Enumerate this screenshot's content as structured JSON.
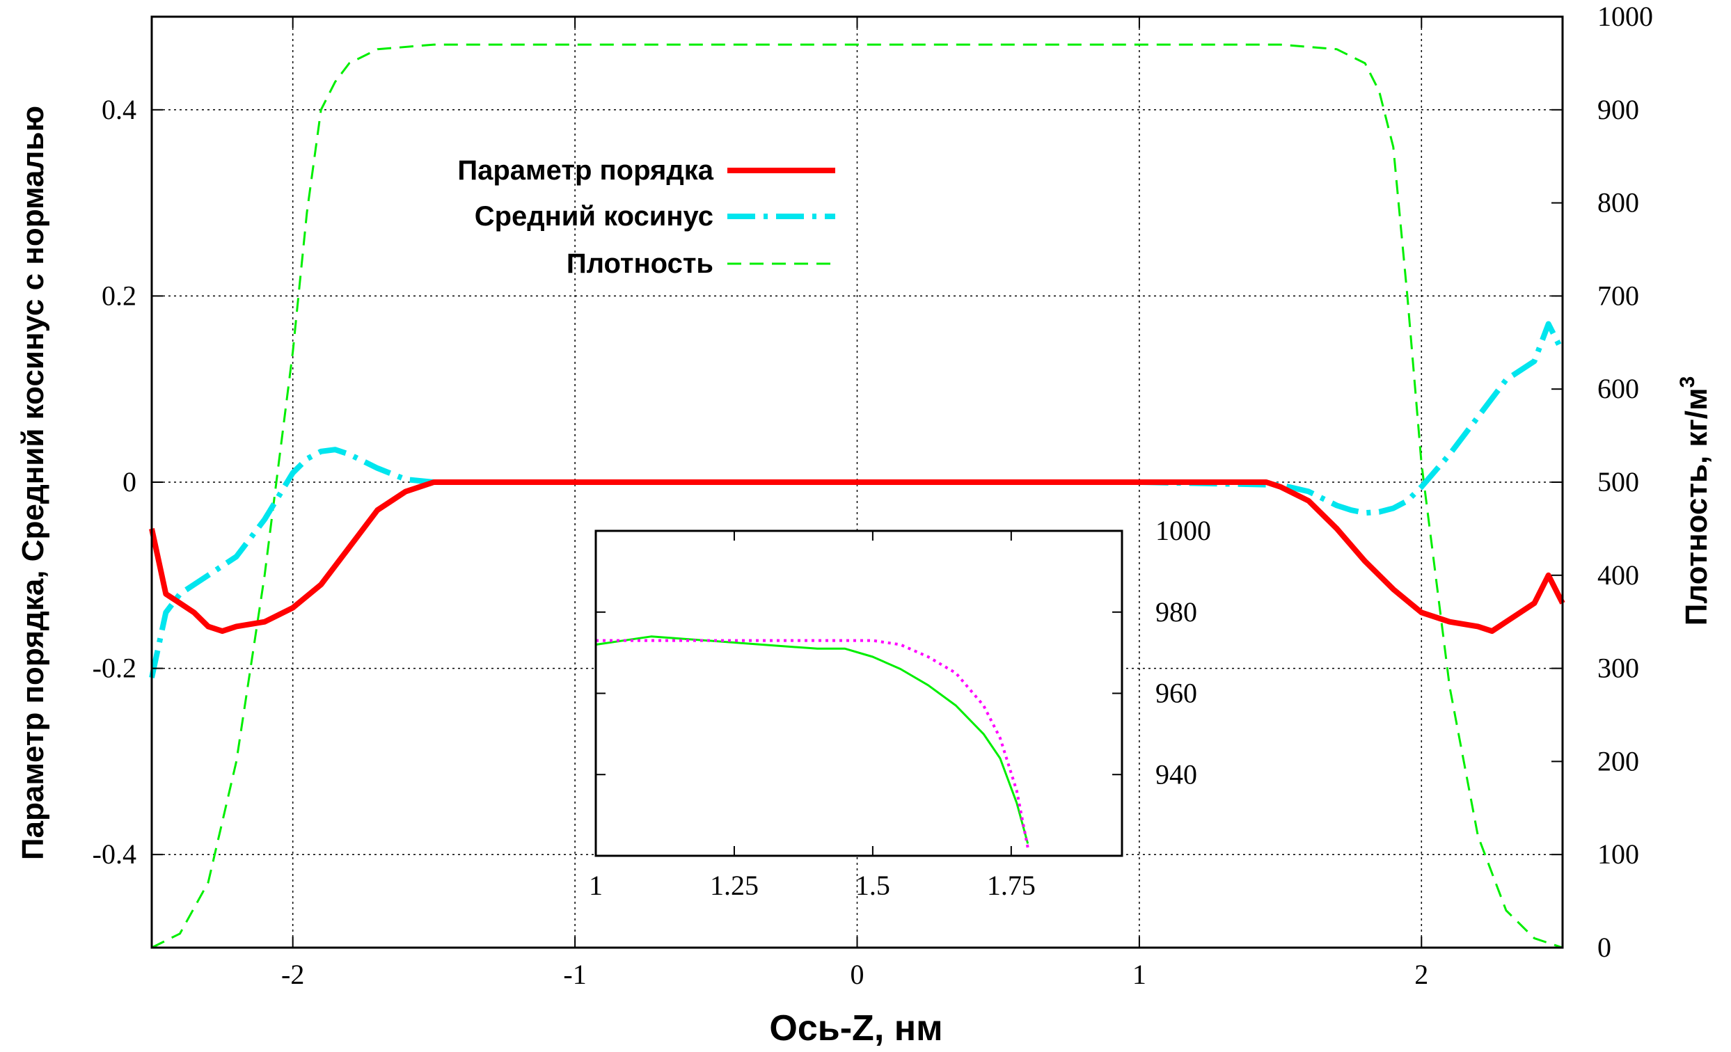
{
  "colors": {
    "order": "#ff0000",
    "cosine": "#00e5ee",
    "density": "#00ee00",
    "fit": "#ff00ff"
  },
  "chart_data": [
    {
      "type": "line",
      "xlabel": "Ось-Z, нм",
      "ylabel": "Параметр порядка, Средний косинус с нормалью",
      "y2label": "Плотность, кг/м",
      "y2label_sup": "3",
      "xlim": [
        -2.5,
        2.5
      ],
      "ylim": [
        -0.5,
        0.5
      ],
      "y2lim": [
        0,
        1000
      ],
      "xticks": [
        -2,
        -1,
        0,
        1,
        2
      ],
      "xtick_labels": [
        "-2",
        "-1",
        "0",
        "1",
        "2"
      ],
      "yticks": [
        -0.4,
        -0.2,
        0,
        0.2,
        0.4
      ],
      "ytick_labels": [
        "-0.4",
        "-0.2",
        "0",
        "0.2",
        "0.4"
      ],
      "y2ticks": [
        0,
        100,
        200,
        300,
        400,
        500,
        600,
        700,
        800,
        900,
        1000
      ],
      "y2tick_labels": [
        "0",
        "100",
        "200",
        "300",
        "400",
        "500",
        "600",
        "700",
        "800",
        "900",
        "1000"
      ],
      "grid": true,
      "legend_position": "upper-left",
      "series": [
        {
          "name": "Параметр порядка",
          "axis": "y",
          "style": "solid",
          "x": [
            -2.5,
            -2.45,
            -2.4,
            -2.35,
            -2.3,
            -2.25,
            -2.2,
            -2.1,
            -2.0,
            -1.9,
            -1.8,
            -1.7,
            -1.6,
            -1.5,
            -1.45,
            -1.0,
            -0.5,
            0,
            0.5,
            1.0,
            1.45,
            1.5,
            1.6,
            1.7,
            1.8,
            1.9,
            2.0,
            2.1,
            2.2,
            2.25,
            2.3,
            2.35,
            2.4,
            2.45,
            2.5
          ],
          "y": [
            -0.05,
            -0.12,
            -0.13,
            -0.14,
            -0.155,
            -0.16,
            -0.155,
            -0.15,
            -0.135,
            -0.11,
            -0.07,
            -0.03,
            -0.01,
            0,
            0,
            0,
            0,
            0,
            0,
            0,
            0,
            -0.005,
            -0.02,
            -0.05,
            -0.085,
            -0.115,
            -0.14,
            -0.15,
            -0.155,
            -0.16,
            -0.15,
            -0.14,
            -0.13,
            -0.1,
            -0.13
          ]
        },
        {
          "name": "Средний косинус",
          "axis": "y",
          "style": "dash-dot",
          "x": [
            -2.5,
            -2.45,
            -2.4,
            -2.35,
            -2.3,
            -2.2,
            -2.1,
            -2.0,
            -1.95,
            -1.9,
            -1.85,
            -1.8,
            -1.7,
            -1.6,
            -1.5,
            -1.0,
            -0.5,
            0,
            0.5,
            1.0,
            1.5,
            1.6,
            1.7,
            1.75,
            1.8,
            1.85,
            1.9,
            1.95,
            2.0,
            2.1,
            2.2,
            2.3,
            2.4,
            2.45,
            2.5
          ],
          "y": [
            -0.21,
            -0.14,
            -0.12,
            -0.11,
            -0.1,
            -0.08,
            -0.04,
            0.01,
            0.025,
            0.033,
            0.035,
            0.03,
            0.015,
            0.003,
            0,
            0,
            0,
            0,
            0,
            0,
            -0.003,
            -0.01,
            -0.025,
            -0.03,
            -0.033,
            -0.032,
            -0.028,
            -0.02,
            -0.005,
            0.03,
            0.07,
            0.11,
            0.13,
            0.17,
            0.14
          ]
        },
        {
          "name": "Плотность",
          "axis": "y2",
          "style": "dashed",
          "x": [
            -2.5,
            -2.4,
            -2.3,
            -2.2,
            -2.1,
            -2.05,
            -2.0,
            -1.95,
            -1.9,
            -1.85,
            -1.8,
            -1.7,
            -1.5,
            -1.0,
            0,
            1.0,
            1.5,
            1.7,
            1.8,
            1.85,
            1.9,
            1.95,
            2.0,
            2.05,
            2.1,
            2.2,
            2.3,
            2.4,
            2.5
          ],
          "y": [
            0,
            15,
            70,
            200,
            400,
            520,
            640,
            790,
            900,
            930,
            950,
            965,
            970,
            970,
            970,
            970,
            970,
            965,
            950,
            920,
            860,
            700,
            520,
            400,
            280,
            120,
            40,
            10,
            0
          ]
        }
      ]
    },
    {
      "type": "line",
      "xlim": [
        1,
        1.95
      ],
      "ylim": [
        920,
        1000
      ],
      "xticks": [
        1,
        1.25,
        1.5,
        1.75
      ],
      "xtick_labels": [
        "1",
        "1.25",
        "1.5",
        "1.75"
      ],
      "yticks": [
        940,
        960,
        980,
        1000
      ],
      "ytick_labels": [
        "940",
        "960",
        "980",
        "1000"
      ],
      "series": [
        {
          "style": "solid",
          "x": [
            1,
            1.1,
            1.2,
            1.3,
            1.4,
            1.45,
            1.5,
            1.55,
            1.6,
            1.65,
            1.7,
            1.73,
            1.76,
            1.78
          ],
          "y": [
            972,
            974,
            973,
            972,
            971,
            971,
            969,
            966,
            962,
            957,
            950,
            944,
            933,
            923
          ]
        },
        {
          "style": "dotted",
          "x": [
            1,
            1.3,
            1.5,
            1.55,
            1.6,
            1.65,
            1.7,
            1.73,
            1.76,
            1.78
          ],
          "y": [
            973,
            973,
            973,
            972,
            969,
            965,
            957,
            949,
            936,
            922
          ]
        }
      ]
    }
  ],
  "legend": [
    {
      "label": "Параметр порядка"
    },
    {
      "label": "Средний косинус"
    },
    {
      "label": "Плотность"
    }
  ]
}
